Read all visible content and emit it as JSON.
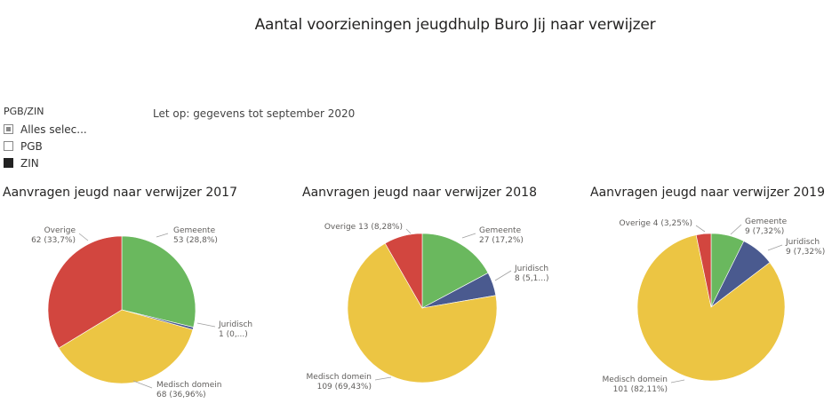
{
  "page": {
    "title": "Aantal voorzieningen jeugdhulp Buro Jij naar verwijzer",
    "note": "Let op: gegevens tot september 2020"
  },
  "slicer": {
    "title": "PGB/ZIN",
    "items": [
      {
        "label": "Alles selec...",
        "state": "partial"
      },
      {
        "label": "PGB",
        "state": "unchecked"
      },
      {
        "label": "ZIN",
        "state": "checked"
      }
    ]
  },
  "colors": {
    "Gemeente": "#6ab85e",
    "Juridisch": "#4a5a8f",
    "Medisch domein": "#ecc543",
    "Overige": "#d2463f"
  },
  "chart_data": [
    {
      "type": "pie",
      "title": "Aanvragen jeugd naar verwijzer 2017",
      "categories": [
        "Gemeente",
        "Juridisch",
        "Medisch domein",
        "Overige"
      ],
      "values": [
        53,
        1,
        68,
        62
      ],
      "labels": [
        [
          "Gemeente",
          "53 (28,8%)"
        ],
        [
          "Juridisch",
          "1 (0,...)"
        ],
        [
          "Medisch domein",
          "68 (36,96%)"
        ],
        [
          "Overige",
          "62 (33,7%)"
        ]
      ]
    },
    {
      "type": "pie",
      "title": "Aanvragen jeugd naar verwijzer 2018",
      "categories": [
        "Gemeente",
        "Juridisch",
        "Medisch domein",
        "Overige"
      ],
      "values": [
        27,
        8,
        109,
        13
      ],
      "labels": [
        [
          "Gemeente",
          "27 (17,2%)"
        ],
        [
          "Juridisch",
          "8 (5,1...)"
        ],
        [
          "Medisch domein",
          "109 (69,43%)"
        ],
        [
          "Overige 13 (8,28%)"
        ]
      ]
    },
    {
      "type": "pie",
      "title": "Aanvragen jeugd naar verwijzer 2019",
      "categories": [
        "Gemeente",
        "Juridisch",
        "Medisch domein",
        "Overige"
      ],
      "values": [
        9,
        9,
        101,
        4
      ],
      "labels": [
        [
          "Gemeente",
          "9 (7,32%)"
        ],
        [
          "Juridisch",
          "9 (7,32%)"
        ],
        [
          "Medisch domein",
          "101 (82,11%)"
        ],
        [
          "Overige 4 (3,25%)"
        ]
      ]
    }
  ]
}
